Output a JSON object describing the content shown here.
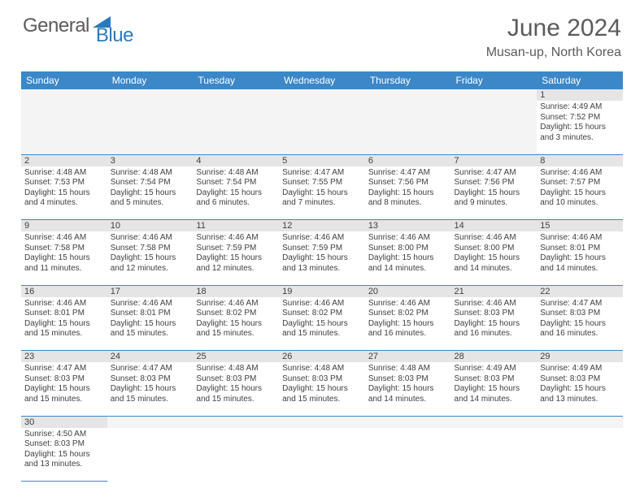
{
  "logo": {
    "general": "General",
    "blue": "Blue"
  },
  "header": {
    "title": "June 2024",
    "location": "Musan-up, North Korea"
  },
  "colors": {
    "header_bg": "#3b87c8",
    "header_text": "#ffffff",
    "daynum_bg": "#e5e5e5",
    "blank_bg": "#f4f4f4",
    "border": "#3b87c8",
    "text": "#404040",
    "logo_gray": "#5b5b5b",
    "logo_blue": "#2a7ac0"
  },
  "days_of_week": [
    "Sunday",
    "Monday",
    "Tuesday",
    "Wednesday",
    "Thursday",
    "Friday",
    "Saturday"
  ],
  "weeks": [
    {
      "nums": [
        "",
        "",
        "",
        "",
        "",
        "",
        "1"
      ],
      "cells": [
        null,
        null,
        null,
        null,
        null,
        null,
        {
          "sunrise": "Sunrise: 4:49 AM",
          "sunset": "Sunset: 7:52 PM",
          "daylight": "Daylight: 15 hours and 3 minutes."
        }
      ]
    },
    {
      "nums": [
        "2",
        "3",
        "4",
        "5",
        "6",
        "7",
        "8"
      ],
      "cells": [
        {
          "sunrise": "Sunrise: 4:48 AM",
          "sunset": "Sunset: 7:53 PM",
          "daylight": "Daylight: 15 hours and 4 minutes."
        },
        {
          "sunrise": "Sunrise: 4:48 AM",
          "sunset": "Sunset: 7:54 PM",
          "daylight": "Daylight: 15 hours and 5 minutes."
        },
        {
          "sunrise": "Sunrise: 4:48 AM",
          "sunset": "Sunset: 7:54 PM",
          "daylight": "Daylight: 15 hours and 6 minutes."
        },
        {
          "sunrise": "Sunrise: 4:47 AM",
          "sunset": "Sunset: 7:55 PM",
          "daylight": "Daylight: 15 hours and 7 minutes."
        },
        {
          "sunrise": "Sunrise: 4:47 AM",
          "sunset": "Sunset: 7:56 PM",
          "daylight": "Daylight: 15 hours and 8 minutes."
        },
        {
          "sunrise": "Sunrise: 4:47 AM",
          "sunset": "Sunset: 7:56 PM",
          "daylight": "Daylight: 15 hours and 9 minutes."
        },
        {
          "sunrise": "Sunrise: 4:46 AM",
          "sunset": "Sunset: 7:57 PM",
          "daylight": "Daylight: 15 hours and 10 minutes."
        }
      ]
    },
    {
      "nums": [
        "9",
        "10",
        "11",
        "12",
        "13",
        "14",
        "15"
      ],
      "cells": [
        {
          "sunrise": "Sunrise: 4:46 AM",
          "sunset": "Sunset: 7:58 PM",
          "daylight": "Daylight: 15 hours and 11 minutes."
        },
        {
          "sunrise": "Sunrise: 4:46 AM",
          "sunset": "Sunset: 7:58 PM",
          "daylight": "Daylight: 15 hours and 12 minutes."
        },
        {
          "sunrise": "Sunrise: 4:46 AM",
          "sunset": "Sunset: 7:59 PM",
          "daylight": "Daylight: 15 hours and 12 minutes."
        },
        {
          "sunrise": "Sunrise: 4:46 AM",
          "sunset": "Sunset: 7:59 PM",
          "daylight": "Daylight: 15 hours and 13 minutes."
        },
        {
          "sunrise": "Sunrise: 4:46 AM",
          "sunset": "Sunset: 8:00 PM",
          "daylight": "Daylight: 15 hours and 14 minutes."
        },
        {
          "sunrise": "Sunrise: 4:46 AM",
          "sunset": "Sunset: 8:00 PM",
          "daylight": "Daylight: 15 hours and 14 minutes."
        },
        {
          "sunrise": "Sunrise: 4:46 AM",
          "sunset": "Sunset: 8:01 PM",
          "daylight": "Daylight: 15 hours and 14 minutes."
        }
      ]
    },
    {
      "nums": [
        "16",
        "17",
        "18",
        "19",
        "20",
        "21",
        "22"
      ],
      "cells": [
        {
          "sunrise": "Sunrise: 4:46 AM",
          "sunset": "Sunset: 8:01 PM",
          "daylight": "Daylight: 15 hours and 15 minutes."
        },
        {
          "sunrise": "Sunrise: 4:46 AM",
          "sunset": "Sunset: 8:01 PM",
          "daylight": "Daylight: 15 hours and 15 minutes."
        },
        {
          "sunrise": "Sunrise: 4:46 AM",
          "sunset": "Sunset: 8:02 PM",
          "daylight": "Daylight: 15 hours and 15 minutes."
        },
        {
          "sunrise": "Sunrise: 4:46 AM",
          "sunset": "Sunset: 8:02 PM",
          "daylight": "Daylight: 15 hours and 15 minutes."
        },
        {
          "sunrise": "Sunrise: 4:46 AM",
          "sunset": "Sunset: 8:02 PM",
          "daylight": "Daylight: 15 hours and 16 minutes."
        },
        {
          "sunrise": "Sunrise: 4:46 AM",
          "sunset": "Sunset: 8:03 PM",
          "daylight": "Daylight: 15 hours and 16 minutes."
        },
        {
          "sunrise": "Sunrise: 4:47 AM",
          "sunset": "Sunset: 8:03 PM",
          "daylight": "Daylight: 15 hours and 16 minutes."
        }
      ]
    },
    {
      "nums": [
        "23",
        "24",
        "25",
        "26",
        "27",
        "28",
        "29"
      ],
      "cells": [
        {
          "sunrise": "Sunrise: 4:47 AM",
          "sunset": "Sunset: 8:03 PM",
          "daylight": "Daylight: 15 hours and 15 minutes."
        },
        {
          "sunrise": "Sunrise: 4:47 AM",
          "sunset": "Sunset: 8:03 PM",
          "daylight": "Daylight: 15 hours and 15 minutes."
        },
        {
          "sunrise": "Sunrise: 4:48 AM",
          "sunset": "Sunset: 8:03 PM",
          "daylight": "Daylight: 15 hours and 15 minutes."
        },
        {
          "sunrise": "Sunrise: 4:48 AM",
          "sunset": "Sunset: 8:03 PM",
          "daylight": "Daylight: 15 hours and 15 minutes."
        },
        {
          "sunrise": "Sunrise: 4:48 AM",
          "sunset": "Sunset: 8:03 PM",
          "daylight": "Daylight: 15 hours and 14 minutes."
        },
        {
          "sunrise": "Sunrise: 4:49 AM",
          "sunset": "Sunset: 8:03 PM",
          "daylight": "Daylight: 15 hours and 14 minutes."
        },
        {
          "sunrise": "Sunrise: 4:49 AM",
          "sunset": "Sunset: 8:03 PM",
          "daylight": "Daylight: 15 hours and 13 minutes."
        }
      ]
    },
    {
      "nums": [
        "30",
        "",
        "",
        "",
        "",
        "",
        ""
      ],
      "cells": [
        {
          "sunrise": "Sunrise: 4:50 AM",
          "sunset": "Sunset: 8:03 PM",
          "daylight": "Daylight: 15 hours and 13 minutes."
        },
        null,
        null,
        null,
        null,
        null,
        null
      ]
    }
  ]
}
